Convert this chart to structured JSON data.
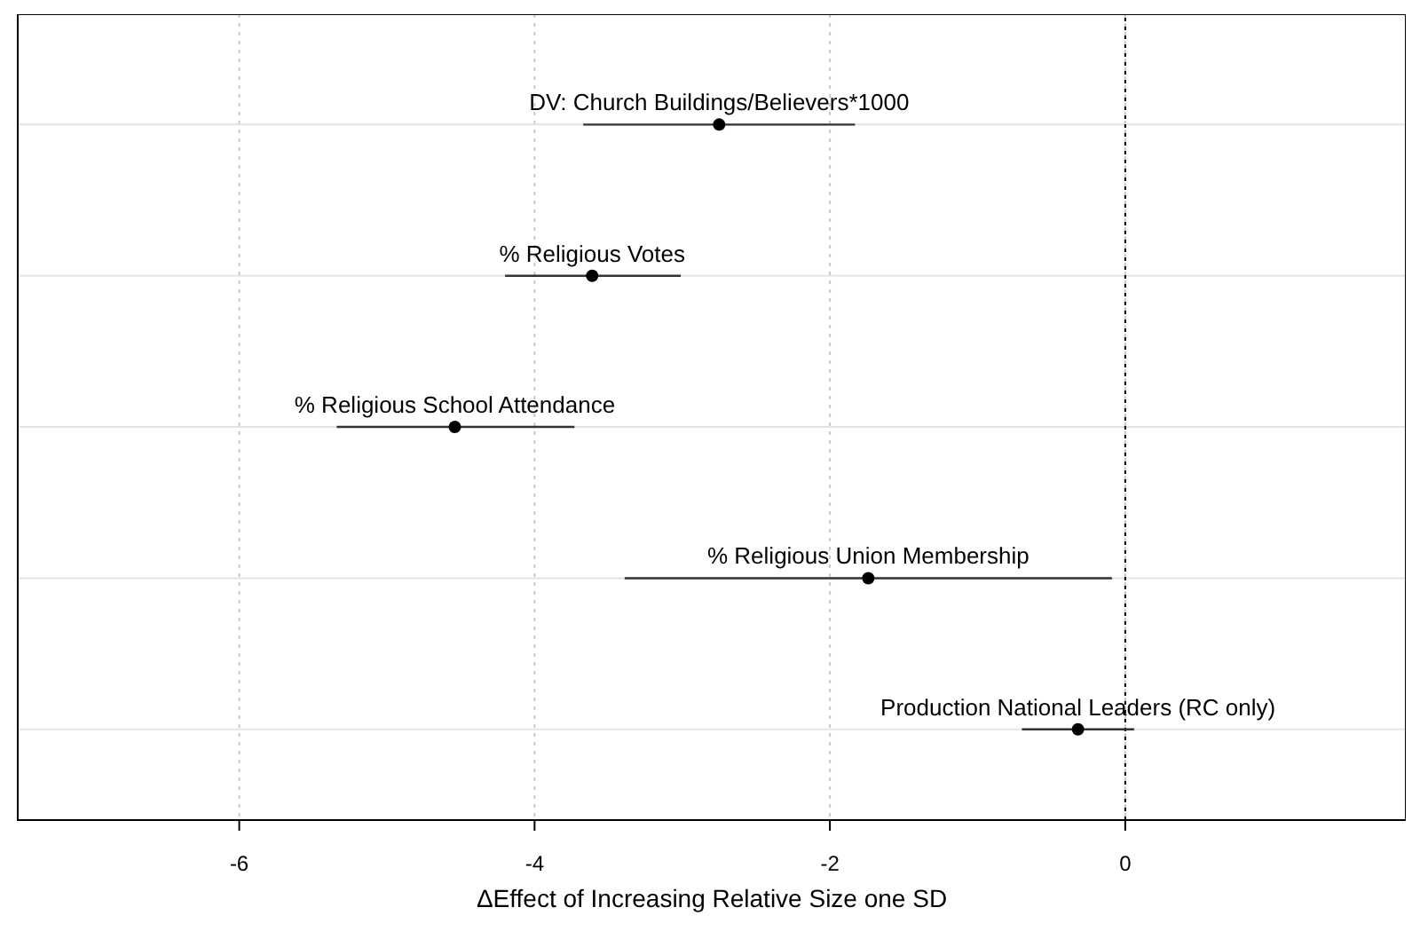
{
  "chart_data": {
    "type": "scatter",
    "orientation": "horizontal",
    "xlabel": "ΔEffect of Increasing Relative Size one SD",
    "categories": [
      "DV: Church Buildings/Believers*1000",
      "% Religious Votes",
      "% Religious School Attendance",
      "% Religious Union Membership",
      "Production National Leaders (RC only)"
    ],
    "values": [
      -2.75,
      -3.61,
      -4.54,
      -1.74,
      -0.32
    ],
    "errors": [
      [
        -3.67,
        -1.83
      ],
      [
        -4.2,
        -3.01
      ],
      [
        -5.34,
        -3.73
      ],
      [
        -3.39,
        -0.09
      ],
      [
        -0.7,
        0.06
      ]
    ],
    "color": "#000000",
    "marker": "circle",
    "xlim": [
      -7.5,
      1.9
    ],
    "xticks": [
      -6,
      -4,
      -2,
      0
    ],
    "grid": true,
    "tick_labels": "x",
    "ref_lines": [
      {
        "axis": "x",
        "value": 0,
        "color": "#000000",
        "line_style": "dotted"
      }
    ]
  }
}
